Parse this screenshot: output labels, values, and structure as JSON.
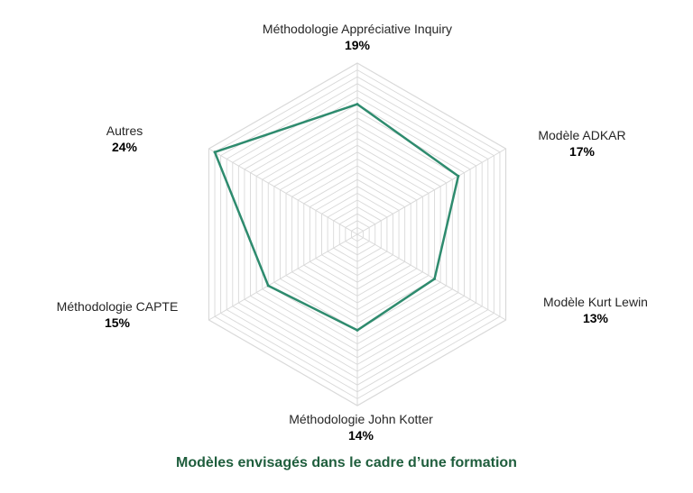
{
  "caption": "Modèles envisagés dans le cadre d’une formation",
  "colors": {
    "series": "#2e8b6e",
    "grid": "#d9d9d9",
    "caption": "#1f5e3d"
  },
  "chart_data": {
    "type": "radar",
    "title": "Modèles envisagés dans le cadre d’une formation",
    "categories": [
      "Méthodologie Appréciative Inquiry",
      "Modèle ADKAR",
      "Modèle Kurt Lewin",
      "Méthodologie John Kotter",
      "Méthodologie CAPTE",
      "Autres"
    ],
    "value_labels": [
      "19%",
      "17%",
      "13%",
      "14%",
      "15%",
      "24%"
    ],
    "series": [
      {
        "values": [
          19,
          17,
          13,
          14,
          15,
          24
        ]
      }
    ],
    "rmax": 25,
    "grid": true,
    "legend": "none"
  }
}
